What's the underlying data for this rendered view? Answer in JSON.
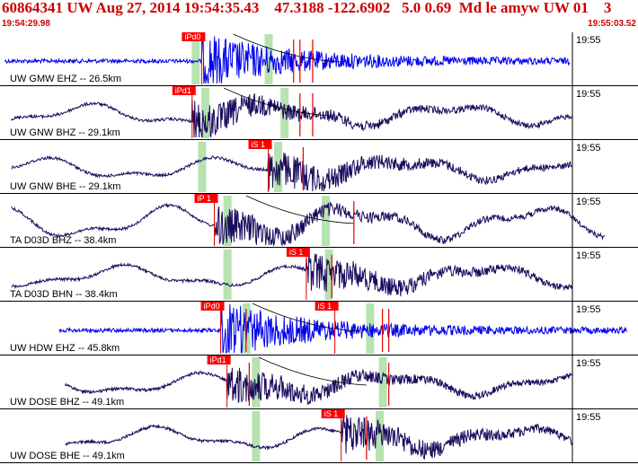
{
  "header": {
    "title": "60864341 UW Aug 27, 2014 19:54:35.43    47.3188 -122.6902   5.0 0.69  Md le amyw UW 01    3",
    "start_time": "19:54:29.98",
    "end_time": "19:55:03.52"
  },
  "colors": {
    "header_text": "#cc0000",
    "blue_trace": "#0000ee",
    "dark_trace": "#1a0a5c",
    "pick_box": "#ff0000",
    "window_band": "#b6e3b0"
  },
  "traces": [
    {
      "label": "UW GMW EHZ -- 26.5km",
      "time": "19:55",
      "color": "blue",
      "picks": [
        {
          "text": "iPd0",
          "t": 0.315
        }
      ],
      "windows": [
        0.305,
        0.42
      ],
      "red_lines": [
        0.46,
        0.47,
        0.49
      ],
      "tail": true
    },
    {
      "label": "UW GNW BHZ -- 29.1km",
      "time": "19:55",
      "color": "dark",
      "picks": [
        {
          "text": "iPd1",
          "t": 0.3
        }
      ],
      "windows": [
        0.32,
        0.445
      ],
      "red_lines": [
        0.47,
        0.49
      ],
      "tail": true
    },
    {
      "label": "UW GNW BHE -- 29.1km",
      "time": "19:55",
      "color": "dark",
      "picks": [
        {
          "text": "iS 1",
          "t": 0.42
        }
      ],
      "windows": [
        0.315,
        0.435
      ],
      "red_lines": [
        0.475
      ],
      "tail": false
    },
    {
      "label": "TA D03D BHZ -- 38.4km",
      "time": "19:55",
      "color": "dark",
      "picks": [
        {
          "text": "iP 1",
          "t": 0.335
        }
      ],
      "windows": [
        0.355,
        0.51
      ],
      "red_lines": [
        0.555
      ],
      "tail": true
    },
    {
      "label": "TA D03D BHN -- 38.4km",
      "time": "19:55",
      "color": "dark",
      "picks": [
        {
          "text": "iS 1",
          "t": 0.48
        }
      ],
      "windows": [
        0.355,
        0.515
      ],
      "red_lines": [
        0.52
      ],
      "tail": false
    },
    {
      "label": "UW HDW EHZ -- 45.8km",
      "time": "19:55",
      "color": "blue",
      "picks": [
        {
          "text": "iPd0",
          "t": 0.345
        },
        {
          "text": "iS 1",
          "t": 0.525
        }
      ],
      "windows": [
        0.385,
        0.58
      ],
      "red_lines": [
        0.385,
        0.6,
        0.61
      ],
      "tail": true
    },
    {
      "label": "UW DOSE BHZ -- 49.1km",
      "time": "19:55",
      "color": "dark",
      "picks": [
        {
          "text": "iPd1",
          "t": 0.355
        }
      ],
      "windows": [
        0.4,
        0.6
      ],
      "red_lines": [
        0.39,
        0.61
      ],
      "tail": true
    },
    {
      "label": "UW DOSE BHE -- 49.1km",
      "time": "19:55",
      "color": "dark",
      "picks": [
        {
          "text": "iS 1",
          "t": 0.535
        }
      ],
      "windows": [
        0.4,
        0.595
      ],
      "red_lines": [
        0.575
      ],
      "tail": false
    }
  ]
}
